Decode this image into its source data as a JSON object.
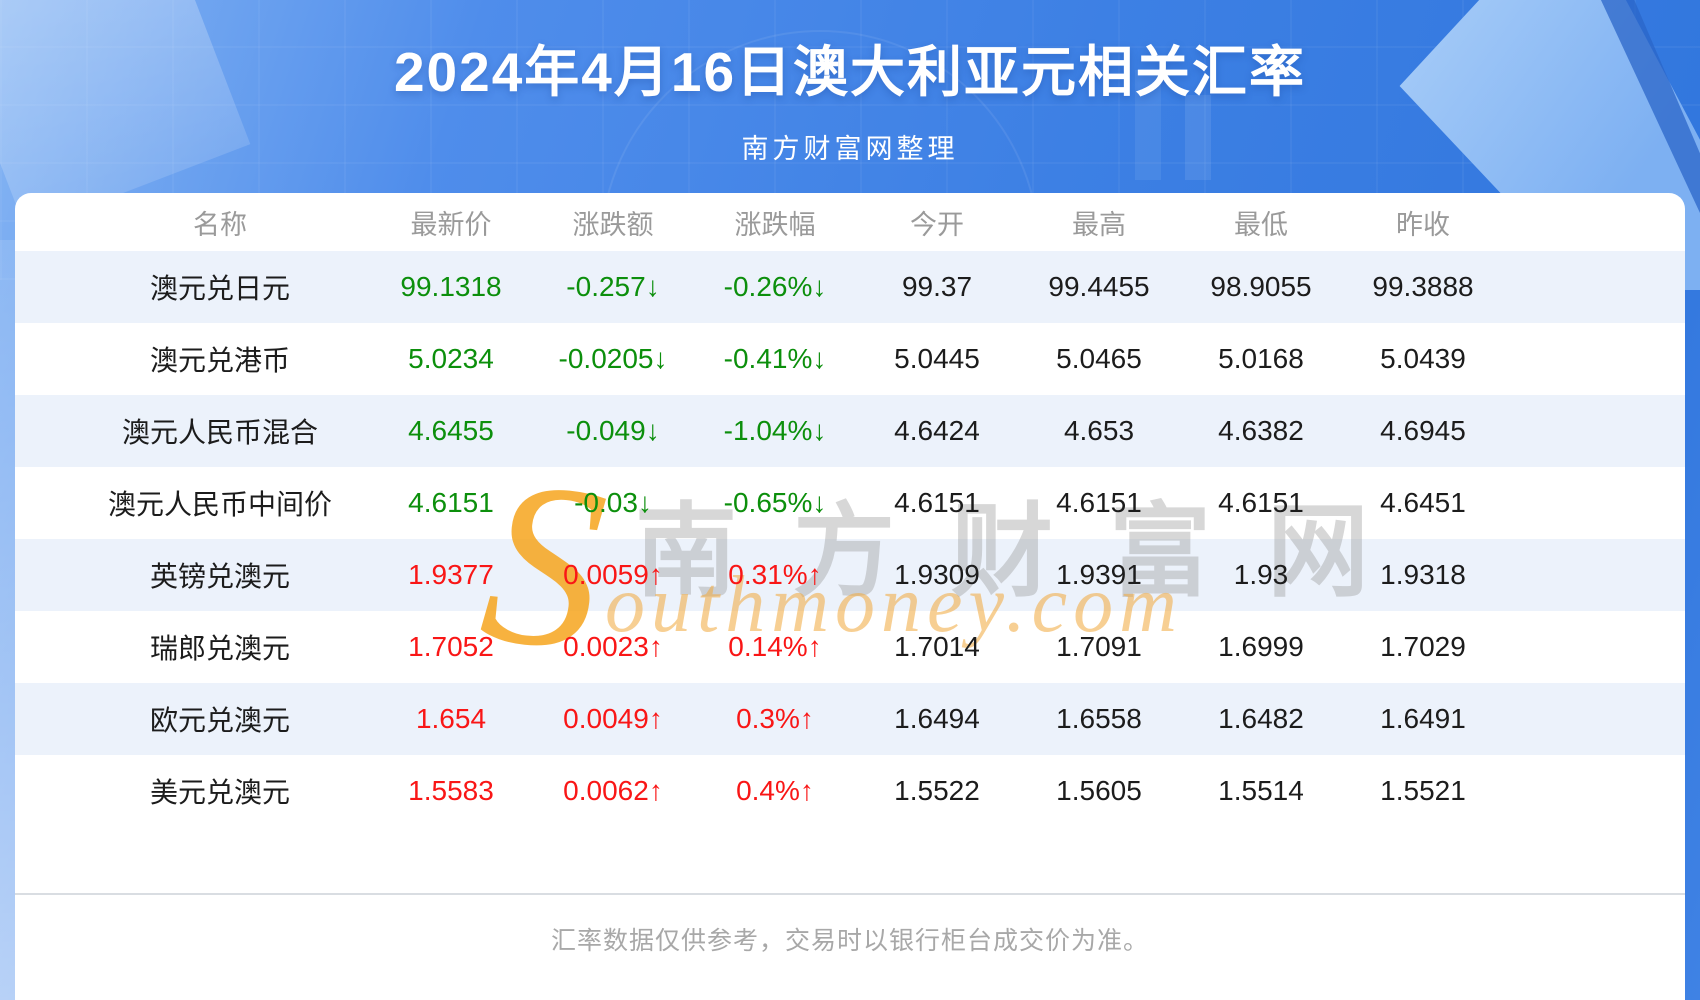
{
  "chart_data": {
    "type": "table",
    "title": "2024年4月16日澳大利亚元相关汇率",
    "subtitle": "南方财富网整理",
    "columns": [
      "名称",
      "最新价",
      "涨跌额",
      "涨跌幅",
      "今开",
      "最高",
      "最低",
      "昨收"
    ],
    "rows": [
      {
        "trend": "down",
        "cells": [
          "澳元兑日元",
          "99.1318",
          "-0.257↓",
          "-0.26%↓",
          "99.37",
          "99.4455",
          "98.9055",
          "99.3888"
        ]
      },
      {
        "trend": "down",
        "cells": [
          "澳元兑港币",
          "5.0234",
          "-0.0205↓",
          "-0.41%↓",
          "5.0445",
          "5.0465",
          "5.0168",
          "5.0439"
        ]
      },
      {
        "trend": "down",
        "cells": [
          "澳元人民币混合",
          "4.6455",
          "-0.049↓",
          "-1.04%↓",
          "4.6424",
          "4.653",
          "4.6382",
          "4.6945"
        ]
      },
      {
        "trend": "down",
        "cells": [
          "澳元人民币中间价",
          "4.6151",
          "-0.03↓",
          "-0.65%↓",
          "4.6151",
          "4.6151",
          "4.6151",
          "4.6451"
        ]
      },
      {
        "trend": "up",
        "cells": [
          "英镑兑澳元",
          "1.9377",
          "0.0059↑",
          "0.31%↑",
          "1.9309",
          "1.9391",
          "1.93",
          "1.9318"
        ]
      },
      {
        "trend": "up",
        "cells": [
          "瑞郎兑澳元",
          "1.7052",
          "0.0023↑",
          "0.14%↑",
          "1.7014",
          "1.7091",
          "1.6999",
          "1.7029"
        ]
      },
      {
        "trend": "up",
        "cells": [
          "欧元兑澳元",
          "1.654",
          "0.0049↑",
          "0.3%↑",
          "1.6494",
          "1.6558",
          "1.6482",
          "1.6491"
        ]
      },
      {
        "trend": "up",
        "cells": [
          "美元兑澳元",
          "1.5583",
          "0.0062↑",
          "0.4%↑",
          "1.5522",
          "1.5605",
          "1.5514",
          "1.5521"
        ]
      }
    ]
  },
  "watermark": {
    "initial": "S",
    "cjk": "南方财富网",
    "script": "outhmoney.com"
  },
  "footer": {
    "note": "汇率数据仅供参考，交易时以银行柜台成交价为准。"
  },
  "colors": {
    "up_red": "#f91616",
    "down_green": "#0c8f0c",
    "hero_blue": "#3d80e4",
    "row_alt_blue": "#ecf2fb",
    "header_gray": "#9a9a9a",
    "watermark_orange": "#f6a51e"
  }
}
